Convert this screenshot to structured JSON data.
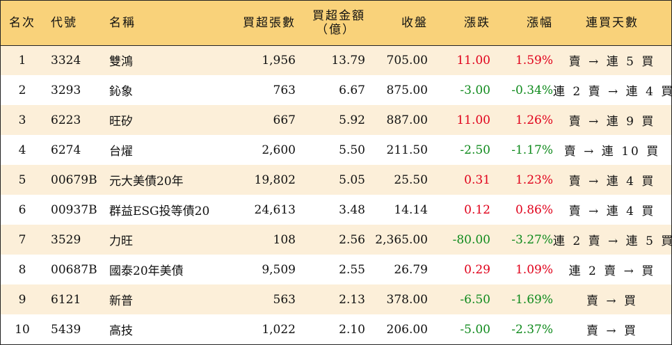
{
  "header": {
    "rank": "名次",
    "code": "代號",
    "name": "名稱",
    "lots": "買超張數",
    "amount_line1": "買超金額",
    "amount_line2": "（億）",
    "close": "收盤",
    "change": "漲跌",
    "pct": "漲幅",
    "days": "連買天數"
  },
  "colors": {
    "header_bg": "#f9d27a",
    "stripe_bg": "#fcefd9",
    "up": "#e0001a",
    "down": "#0f8a1c"
  },
  "rows": [
    {
      "rank": "1",
      "code": "3324",
      "name": "雙鴻",
      "lots": "1,956",
      "amount": "13.79",
      "close": "705.00",
      "change": "11.00",
      "pct": "1.59%",
      "dir": "up",
      "days": "賣 → 連 5 買"
    },
    {
      "rank": "2",
      "code": "3293",
      "name": "鈊象",
      "lots": "763",
      "amount": "6.67",
      "close": "875.00",
      "change": "-3.00",
      "pct": "-0.34%",
      "dir": "down",
      "days": "連 2 賣 → 連 4 買"
    },
    {
      "rank": "3",
      "code": "6223",
      "name": "旺矽",
      "lots": "667",
      "amount": "5.92",
      "close": "887.00",
      "change": "11.00",
      "pct": "1.26%",
      "dir": "up",
      "days": "賣 → 連 9 買"
    },
    {
      "rank": "4",
      "code": "6274",
      "name": "台燿",
      "lots": "2,600",
      "amount": "5.50",
      "close": "211.50",
      "change": "-2.50",
      "pct": "-1.17%",
      "dir": "down",
      "days": "賣 → 連 10 買"
    },
    {
      "rank": "5",
      "code": "00679B",
      "name": "元大美債20年",
      "lots": "19,802",
      "amount": "5.05",
      "close": "25.50",
      "change": "0.31",
      "pct": "1.23%",
      "dir": "up",
      "days": "賣 → 連 4 買"
    },
    {
      "rank": "6",
      "code": "00937B",
      "name": "群益ESG投等債20",
      "lots": "24,613",
      "amount": "3.48",
      "close": "14.14",
      "change": "0.12",
      "pct": "0.86%",
      "dir": "up",
      "days": "賣 → 連 4 買"
    },
    {
      "rank": "7",
      "code": "3529",
      "name": "力旺",
      "lots": "108",
      "amount": "2.56",
      "close": "2,365.00",
      "change": "-80.00",
      "pct": "-3.27%",
      "dir": "down",
      "days": "連 2 賣 → 連 5 買"
    },
    {
      "rank": "8",
      "code": "00687B",
      "name": "國泰20年美債",
      "lots": "9,509",
      "amount": "2.55",
      "close": "26.79",
      "change": "0.29",
      "pct": "1.09%",
      "dir": "up",
      "days": "連 2 賣 → 買"
    },
    {
      "rank": "9",
      "code": "6121",
      "name": "新普",
      "lots": "563",
      "amount": "2.13",
      "close": "378.00",
      "change": "-6.50",
      "pct": "-1.69%",
      "dir": "down",
      "days": "賣 → 買"
    },
    {
      "rank": "10",
      "code": "5439",
      "name": "高技",
      "lots": "1,022",
      "amount": "2.10",
      "close": "206.00",
      "change": "-5.00",
      "pct": "-2.37%",
      "dir": "down",
      "days": "賣 → 買"
    }
  ]
}
